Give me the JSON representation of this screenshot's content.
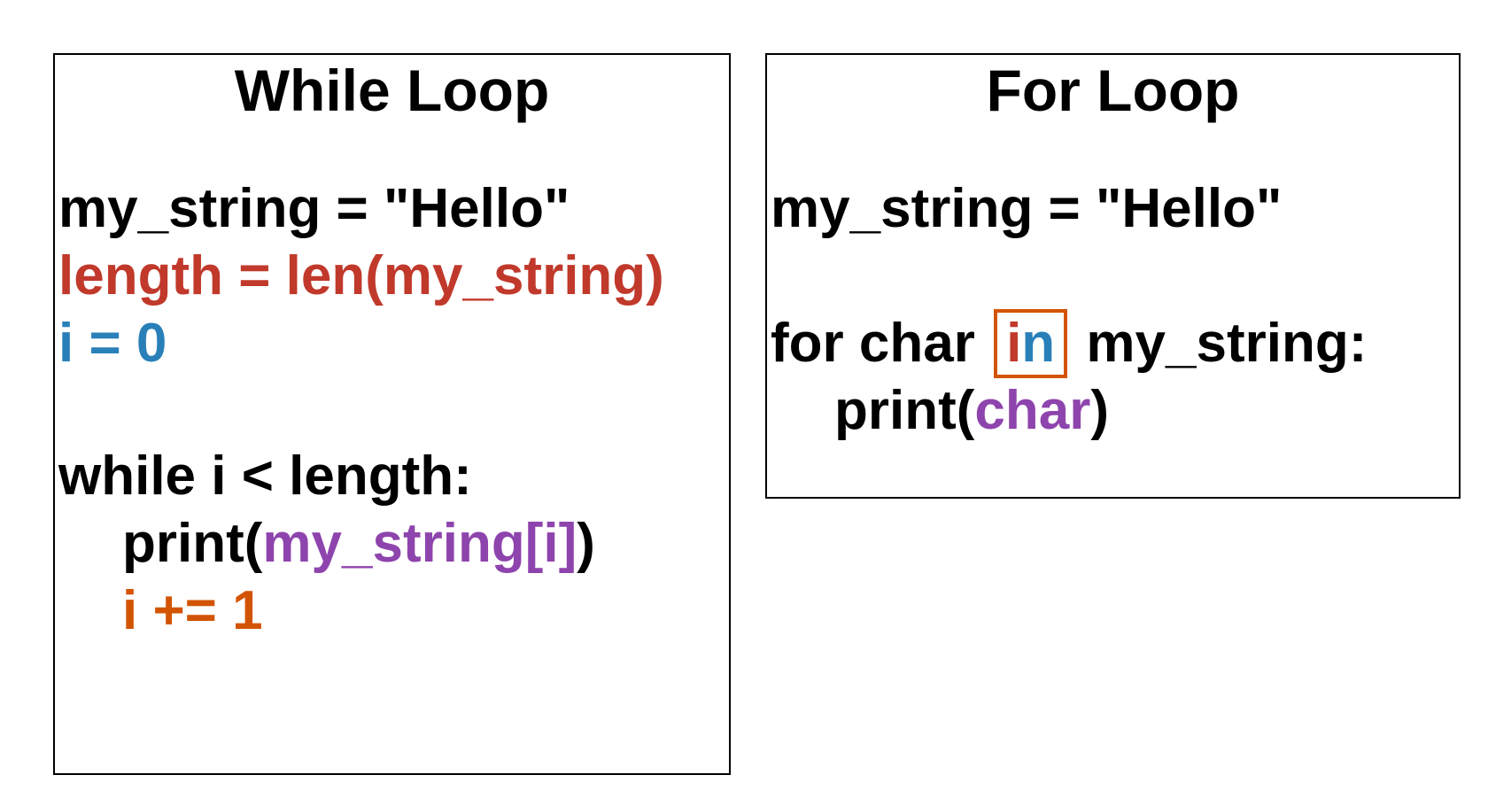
{
  "colors": {
    "black": "#000000",
    "red": "#c0392b",
    "blue": "#2980b9",
    "purple": "#8e44ad",
    "orange": "#d35400"
  },
  "while_panel": {
    "title": "While Loop",
    "line1": "my_string = \"Hello\"",
    "line2": "length = len(my_string)",
    "line3": "i = 0",
    "line4": "while i < length:",
    "line5_prefix": "print(",
    "line5_arg": "my_string[i]",
    "line5_suffix": ")",
    "line6": "i += 1"
  },
  "for_panel": {
    "title": "For Loop",
    "line1": "my_string = \"Hello\"",
    "line2_for": "for char ",
    "line2_in_i": "i",
    "line2_in_n": "n",
    "line2_rest": " my_string:",
    "line3_prefix": "print(",
    "line3_arg": "char",
    "line3_suffix": ")"
  }
}
